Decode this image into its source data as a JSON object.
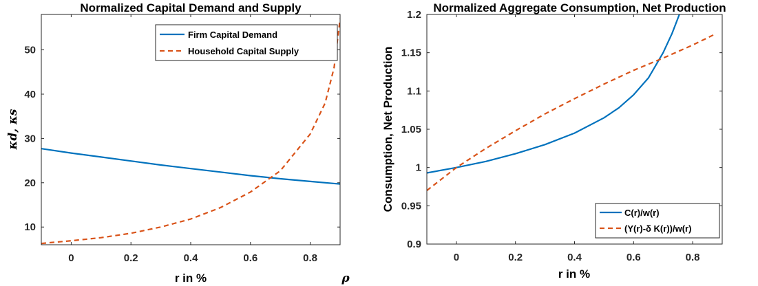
{
  "chart_data": [
    {
      "type": "line",
      "title": "Normalized Capital Demand and Supply",
      "xlabel": "r in %",
      "ylabel": "κd, κs",
      "xlim": [
        -0.1,
        0.9
      ],
      "ylim": [
        6,
        58
      ],
      "xticks": [
        0,
        0.2,
        0.4,
        0.6,
        0.8
      ],
      "xtick_labels": [
        "0",
        "0.2",
        "0.4",
        "0.6",
        "0.8"
      ],
      "yticks": [
        10,
        20,
        30,
        40,
        50
      ],
      "ytick_labels": [
        "10",
        "20",
        "30",
        "40",
        "50"
      ],
      "stray_label": "ρ",
      "legend_position": "top-right",
      "series": [
        {
          "name": "Firm Capital Demand",
          "color": "#0072BD",
          "style": "solid",
          "x": [
            -0.1,
            0.0,
            0.1,
            0.2,
            0.3,
            0.4,
            0.5,
            0.6,
            0.7,
            0.8,
            0.9
          ],
          "y": [
            27.7,
            26.7,
            25.8,
            24.9,
            24.0,
            23.2,
            22.4,
            21.6,
            20.9,
            20.3,
            19.7
          ]
        },
        {
          "name": "Household Capital Supply",
          "color": "#D95319",
          "style": "dashed",
          "x": [
            -0.1,
            0.0,
            0.1,
            0.2,
            0.3,
            0.4,
            0.5,
            0.6,
            0.7,
            0.8,
            0.85,
            0.88,
            0.9
          ],
          "y": [
            6.3,
            6.9,
            7.6,
            8.6,
            10.0,
            11.8,
            14.4,
            17.9,
            22.7,
            31.0,
            38.0,
            46.0,
            57.0
          ]
        }
      ]
    },
    {
      "type": "line",
      "title": "Normalized Aggregate Consumption, Net Production",
      "xlabel": "r in %",
      "ylabel": "Consumption, Net Production",
      "xlim": [
        -0.1,
        0.9
      ],
      "ylim": [
        0.9,
        1.2
      ],
      "xticks": [
        0,
        0.2,
        0.4,
        0.6,
        0.8
      ],
      "xtick_labels": [
        "0",
        "0.2",
        "0.4",
        "0.6",
        "0.8"
      ],
      "yticks": [
        0.9,
        0.95,
        1.0,
        1.05,
        1.1,
        1.15,
        1.2
      ],
      "ytick_labels": [
        "0.9",
        "0.95",
        "1",
        "1.05",
        "1.1",
        "1.15",
        "1.2"
      ],
      "legend_position": "bottom-right",
      "series": [
        {
          "name": "C(r)/w(r)",
          "color": "#0072BD",
          "style": "solid",
          "x": [
            -0.1,
            0.0,
            0.1,
            0.2,
            0.3,
            0.4,
            0.5,
            0.55,
            0.6,
            0.65,
            0.7,
            0.73,
            0.755
          ],
          "y": [
            0.993,
            1.0,
            1.008,
            1.018,
            1.03,
            1.045,
            1.065,
            1.078,
            1.095,
            1.117,
            1.15,
            1.175,
            1.2
          ]
        },
        {
          "name": "(Y(r)-δ K(r))/w(r)",
          "color": "#D95319",
          "style": "dashed",
          "x": [
            -0.1,
            0.0,
            0.1,
            0.2,
            0.3,
            0.4,
            0.5,
            0.6,
            0.7,
            0.8,
            0.88
          ],
          "y": [
            0.97,
            1.0,
            1.025,
            1.048,
            1.07,
            1.09,
            1.109,
            1.127,
            1.143,
            1.16,
            1.175
          ]
        }
      ]
    }
  ]
}
